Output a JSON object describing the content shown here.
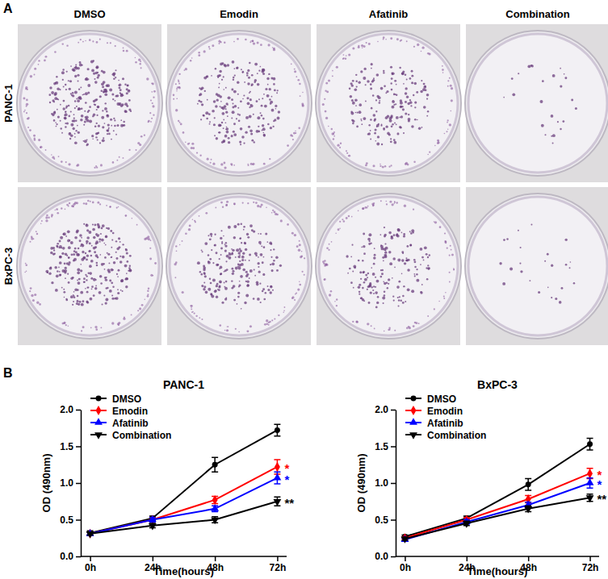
{
  "figure": {
    "panel_a": {
      "label": "A",
      "columns": [
        "DMSO",
        "Emodin",
        "Afatinib",
        "Combination"
      ],
      "rows": [
        "PANC-1",
        "BxPC-3"
      ]
    },
    "panel_b_label": "B"
  },
  "chart_data": [
    {
      "type": "line",
      "title": "PANC-1",
      "x_label": "Time(hours)",
      "y_label": "OD (490nm)",
      "categories": [
        "0h",
        "24h",
        "48h",
        "72h"
      ],
      "ylim": [
        0,
        2
      ],
      "yticks": [
        {
          "value": 0,
          "label": "0.0"
        },
        {
          "value": 0.5,
          "label": "0.5"
        },
        {
          "value": 1,
          "label": "1.0"
        },
        {
          "value": 1.5,
          "label": "1.5"
        },
        {
          "value": 2,
          "label": "2.0"
        }
      ],
      "legend": "top-left",
      "series": [
        {
          "name": "DMSO",
          "color": "#000000",
          "marker": "circle",
          "values": [
            0.32,
            0.52,
            1.25,
            1.72
          ],
          "errors": [
            0.03,
            0.03,
            0.1,
            0.08
          ]
        },
        {
          "name": "Emodin",
          "color": "#ff0000",
          "marker": "diamond",
          "values": [
            0.31,
            0.5,
            0.77,
            1.22
          ],
          "errors": [
            0.02,
            0.03,
            0.05,
            0.1
          ]
        },
        {
          "name": "Afatinib",
          "color": "#0000ff",
          "marker": "triangle-up",
          "values": [
            0.31,
            0.5,
            0.65,
            1.07
          ],
          "errors": [
            0.02,
            0.03,
            0.04,
            0.08
          ]
        },
        {
          "name": "Combination",
          "color": "#000000",
          "marker": "triangle-down",
          "values": [
            0.31,
            0.42,
            0.5,
            0.75
          ],
          "errors": [
            0.02,
            0.03,
            0.04,
            0.06
          ]
        }
      ],
      "annotations": [
        {
          "text": "*",
          "series": "Emodin",
          "color": "#ff0000"
        },
        {
          "text": "*",
          "series": "Afatinib",
          "color": "#0000ff"
        },
        {
          "text": "**",
          "series": "Combination",
          "color": "#000000"
        }
      ]
    },
    {
      "type": "line",
      "title": "BxPC-3",
      "x_label": "Time(hours)",
      "y_label": "OD (490nm)",
      "categories": [
        "0h",
        "24h",
        "48h",
        "72h"
      ],
      "ylim": [
        0,
        2
      ],
      "yticks": [
        {
          "value": 0,
          "label": "0.0"
        },
        {
          "value": 0.5,
          "label": "0.5"
        },
        {
          "value": 1,
          "label": "1.0"
        },
        {
          "value": 1.5,
          "label": "1.5"
        },
        {
          "value": 2,
          "label": "2.0"
        }
      ],
      "legend": "top-left",
      "series": [
        {
          "name": "DMSO",
          "color": "#000000",
          "marker": "circle",
          "values": [
            0.27,
            0.52,
            0.98,
            1.53
          ],
          "errors": [
            0.02,
            0.03,
            0.08,
            0.08
          ]
        },
        {
          "name": "Emodin",
          "color": "#ff0000",
          "marker": "diamond",
          "values": [
            0.25,
            0.5,
            0.78,
            1.13
          ],
          "errors": [
            0.02,
            0.03,
            0.05,
            0.07
          ]
        },
        {
          "name": "Afatinib",
          "color": "#0000ff",
          "marker": "triangle-up",
          "values": [
            0.23,
            0.47,
            0.7,
            1.0
          ],
          "errors": [
            0.02,
            0.03,
            0.04,
            0.07
          ]
        },
        {
          "name": "Combination",
          "color": "#000000",
          "marker": "triangle-down",
          "values": [
            0.24,
            0.45,
            0.65,
            0.8
          ],
          "errors": [
            0.02,
            0.03,
            0.04,
            0.05
          ]
        }
      ],
      "annotations": [
        {
          "text": "*",
          "series": "Emodin",
          "color": "#ff0000"
        },
        {
          "text": "*",
          "series": "Afatinib",
          "color": "#0000ff"
        },
        {
          "text": "**",
          "series": "Combination",
          "color": "#000000"
        }
      ]
    }
  ]
}
